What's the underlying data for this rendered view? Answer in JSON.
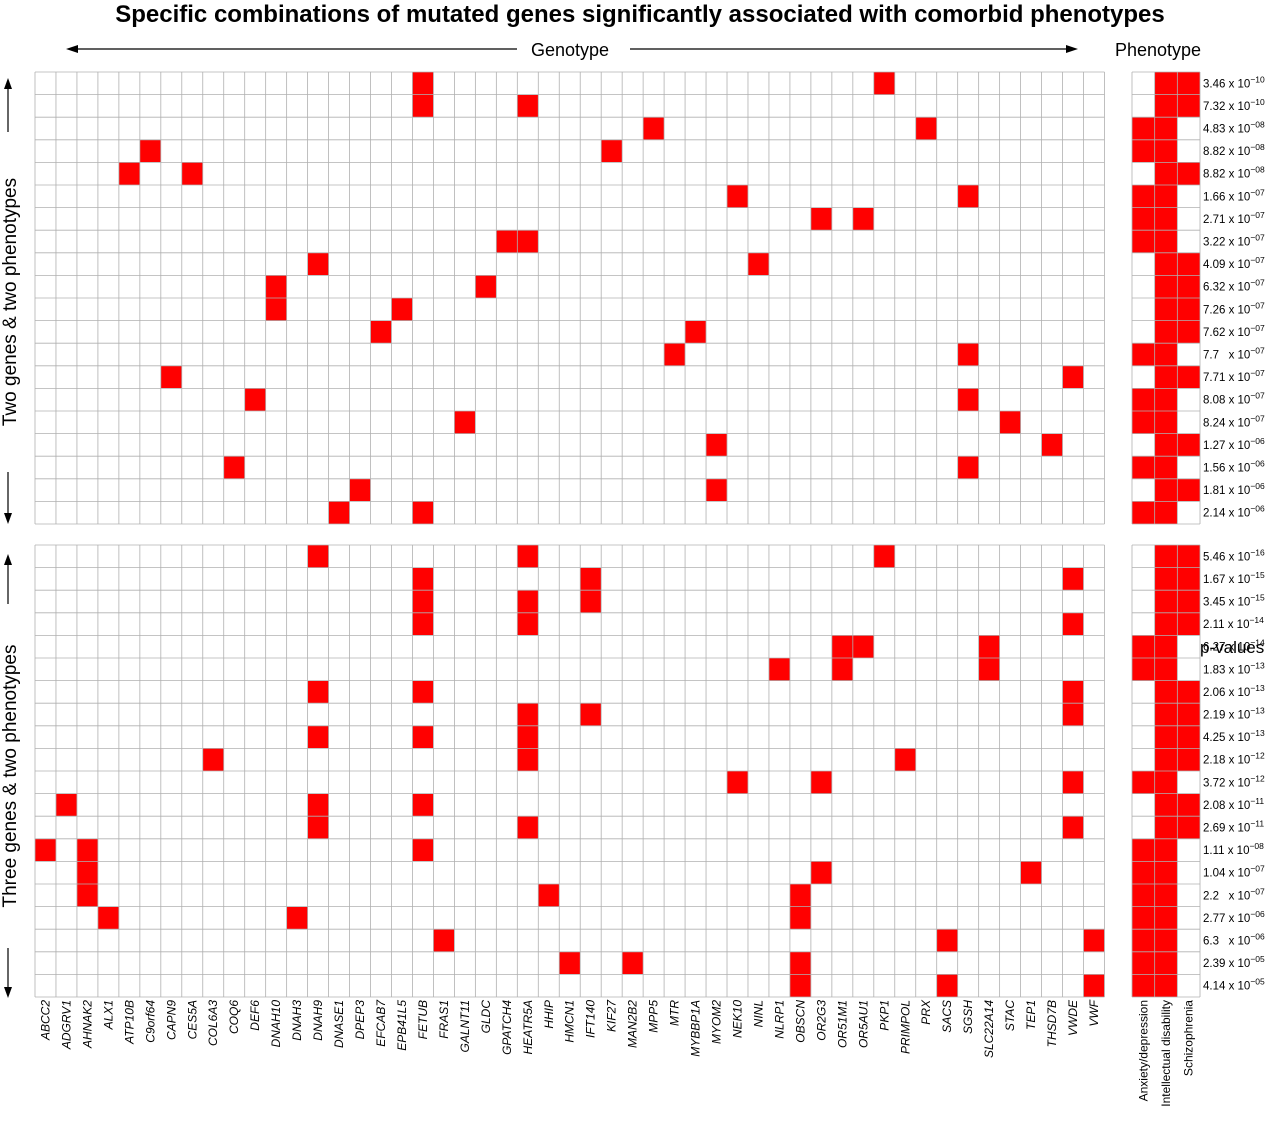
{
  "chart_data": {
    "type": "heatmap",
    "title": "Specific combinations of mutated genes significantly associated with comorbid phenotypes",
    "genotype_label": "Genotype",
    "phenotype_label": "Phenotype",
    "pvalues_label": "p-values",
    "genes": [
      "ABCC2",
      "ADGRV1",
      "AHNAK2",
      "ALX1",
      "ATP10B",
      "C9orf64",
      "CAPN9",
      "CES5A",
      "COL6A3",
      "COQ6",
      "DEF6",
      "DNAH10",
      "DNAH3",
      "DNAH9",
      "DNASE1",
      "DPEP3",
      "EFCAB7",
      "EPB41L5",
      "FETUB",
      "FRAS1",
      "GALNT11",
      "GLDC",
      "GPATCH4",
      "HEATR5A",
      "HHIP",
      "HMCN1",
      "IFT140",
      "KIF27",
      "MAN2B2",
      "MPP5",
      "MTR",
      "MYBBP1A",
      "MYOM2",
      "NEK10",
      "NINL",
      "NLRP1",
      "OBSCN",
      "OR2G3",
      "OR51M1",
      "OR5AU1",
      "PKP1",
      "PRIMPOL",
      "PRX",
      "SACS",
      "SGSH",
      "SLC22A14",
      "STAC",
      "TEP1",
      "THSD7B",
      "VWDE",
      "VWF"
    ],
    "phenotypes": [
      "Anxiety/depression",
      "Intellectual disability",
      "Schizophrenia"
    ],
    "panels": [
      {
        "label": "Two genes & two phenotypes",
        "rows": [
          {
            "genes": [
              "FETUB",
              "PKP1"
            ],
            "phenotypes": [
              "Intellectual disability",
              "Schizophrenia"
            ],
            "pvalue": "3.46 x 10",
            "exp": "−10"
          },
          {
            "genes": [
              "FETUB",
              "HEATR5A"
            ],
            "phenotypes": [
              "Intellectual disability",
              "Schizophrenia"
            ],
            "pvalue": "7.32 x 10",
            "exp": "−10"
          },
          {
            "genes": [
              "MPP5",
              "PRX"
            ],
            "phenotypes": [
              "Anxiety/depression",
              "Intellectual disability"
            ],
            "pvalue": "4.83 x 10",
            "exp": "−08"
          },
          {
            "genes": [
              "C9orf64",
              "KIF27"
            ],
            "phenotypes": [
              "Anxiety/depression",
              "Intellectual disability"
            ],
            "pvalue": "8.82 x 10",
            "exp": "−08"
          },
          {
            "genes": [
              "ATP10B",
              "CES5A"
            ],
            "phenotypes": [
              "Intellectual disability",
              "Schizophrenia"
            ],
            "pvalue": "8.82 x 10",
            "exp": "−08"
          },
          {
            "genes": [
              "NEK10",
              "SGSH"
            ],
            "phenotypes": [
              "Anxiety/depression",
              "Intellectual disability"
            ],
            "pvalue": "1.66 x 10",
            "exp": "−07"
          },
          {
            "genes": [
              "OR2G3",
              "OR5AU1"
            ],
            "phenotypes": [
              "Anxiety/depression",
              "Intellectual disability"
            ],
            "pvalue": "2.71 x 10",
            "exp": "−07"
          },
          {
            "genes": [
              "GPATCH4",
              "HEATR5A"
            ],
            "phenotypes": [
              "Anxiety/depression",
              "Intellectual disability"
            ],
            "pvalue": "3.22 x 10",
            "exp": "−07"
          },
          {
            "genes": [
              "DNAH9",
              "NINL"
            ],
            "phenotypes": [
              "Intellectual disability",
              "Schizophrenia"
            ],
            "pvalue": "4.09 x 10",
            "exp": "−07"
          },
          {
            "genes": [
              "DNAH10",
              "GLDC"
            ],
            "phenotypes": [
              "Intellectual disability",
              "Schizophrenia"
            ],
            "pvalue": "6.32 x 10",
            "exp": "−07"
          },
          {
            "genes": [
              "DNAH10",
              "EPB41L5"
            ],
            "phenotypes": [
              "Intellectual disability",
              "Schizophrenia"
            ],
            "pvalue": "7.26 x 10",
            "exp": "−07"
          },
          {
            "genes": [
              "EFCAB7",
              "MYBBP1A"
            ],
            "phenotypes": [
              "Intellectual disability",
              "Schizophrenia"
            ],
            "pvalue": "7.62 x 10",
            "exp": "−07"
          },
          {
            "genes": [
              "MTR",
              "SGSH"
            ],
            "phenotypes": [
              "Anxiety/depression",
              "Intellectual disability"
            ],
            "pvalue": "7.7   x 10",
            "exp": "−07"
          },
          {
            "genes": [
              "CAPN9",
              "VWDE"
            ],
            "phenotypes": [
              "Intellectual disability",
              "Schizophrenia"
            ],
            "pvalue": "7.71 x 10",
            "exp": "−07"
          },
          {
            "genes": [
              "DEF6",
              "SGSH"
            ],
            "phenotypes": [
              "Anxiety/depression",
              "Intellectual disability"
            ],
            "pvalue": "8.08 x 10",
            "exp": "−07"
          },
          {
            "genes": [
              "GALNT11",
              "STAC"
            ],
            "phenotypes": [
              "Anxiety/depression",
              "Intellectual disability"
            ],
            "pvalue": "8.24 x 10",
            "exp": "−07"
          },
          {
            "genes": [
              "MYOM2",
              "THSD7B"
            ],
            "phenotypes": [
              "Intellectual disability",
              "Schizophrenia"
            ],
            "pvalue": "1.27 x 10",
            "exp": "−06"
          },
          {
            "genes": [
              "COQ6",
              "SGSH"
            ],
            "phenotypes": [
              "Anxiety/depression",
              "Intellectual disability"
            ],
            "pvalue": "1.56 x 10",
            "exp": "−06"
          },
          {
            "genes": [
              "DPEP3",
              "MYOM2"
            ],
            "phenotypes": [
              "Intellectual disability",
              "Schizophrenia"
            ],
            "pvalue": "1.81 x 10",
            "exp": "−06"
          },
          {
            "genes": [
              "DNASE1",
              "FETUB"
            ],
            "phenotypes": [
              "Anxiety/depression",
              "Intellectual disability"
            ],
            "pvalue": "2.14 x 10",
            "exp": "−06"
          }
        ]
      },
      {
        "label": "Three genes & two phenotypes",
        "rows": [
          {
            "genes": [
              "DNAH9",
              "HEATR5A",
              "PKP1"
            ],
            "phenotypes": [
              "Intellectual disability",
              "Schizophrenia"
            ],
            "pvalue": "5.46 x 10",
            "exp": "−16"
          },
          {
            "genes": [
              "FETUB",
              "IFT140",
              "VWDE"
            ],
            "phenotypes": [
              "Intellectual disability",
              "Schizophrenia"
            ],
            "pvalue": "1.67 x 10",
            "exp": "−15"
          },
          {
            "genes": [
              "FETUB",
              "HEATR5A",
              "IFT140"
            ],
            "phenotypes": [
              "Intellectual disability",
              "Schizophrenia"
            ],
            "pvalue": "3.45 x 10",
            "exp": "−15"
          },
          {
            "genes": [
              "FETUB",
              "HEATR5A",
              "VWDE"
            ],
            "phenotypes": [
              "Intellectual disability",
              "Schizophrenia"
            ],
            "pvalue": "2.11 x 10",
            "exp": "−14"
          },
          {
            "genes": [
              "OR51M1",
              "OR5AU1",
              "SLC22A14"
            ],
            "phenotypes": [
              "Anxiety/depression",
              "Intellectual disability"
            ],
            "pvalue": "6.27 x 10",
            "exp": "−14"
          },
          {
            "genes": [
              "NLRP1",
              "OR51M1",
              "SLC22A14"
            ],
            "phenotypes": [
              "Anxiety/depression",
              "Intellectual disability"
            ],
            "pvalue": "1.83 x 10",
            "exp": "−13"
          },
          {
            "genes": [
              "DNAH9",
              "FETUB",
              "VWDE"
            ],
            "phenotypes": [
              "Intellectual disability",
              "Schizophrenia"
            ],
            "pvalue": "2.06 x 10",
            "exp": "−13"
          },
          {
            "genes": [
              "HEATR5A",
              "IFT140",
              "VWDE"
            ],
            "phenotypes": [
              "Intellectual disability",
              "Schizophrenia"
            ],
            "pvalue": "2.19 x 10",
            "exp": "−13"
          },
          {
            "genes": [
              "DNAH9",
              "FETUB",
              "HEATR5A"
            ],
            "phenotypes": [
              "Intellectual disability",
              "Schizophrenia"
            ],
            "pvalue": "4.25 x 10",
            "exp": "−13"
          },
          {
            "genes": [
              "COL6A3",
              "HEATR5A",
              "PRIMPOL"
            ],
            "phenotypes": [
              "Intellectual disability",
              "Schizophrenia"
            ],
            "pvalue": "2.18 x 10",
            "exp": "−12"
          },
          {
            "genes": [
              "NEK10",
              "OR2G3",
              "VWDE"
            ],
            "phenotypes": [
              "Anxiety/depression",
              "Intellectual disability"
            ],
            "pvalue": "3.72 x 10",
            "exp": "−12"
          },
          {
            "genes": [
              "ADGRV1",
              "DNAH9",
              "FETUB"
            ],
            "phenotypes": [
              "Intellectual disability",
              "Schizophrenia"
            ],
            "pvalue": "2.08 x 10",
            "exp": "−11"
          },
          {
            "genes": [
              "DNAH9",
              "HEATR5A",
              "VWDE"
            ],
            "phenotypes": [
              "Intellectual disability",
              "Schizophrenia"
            ],
            "pvalue": "2.69 x 10",
            "exp": "−11"
          },
          {
            "genes": [
              "ABCC2",
              "AHNAK2",
              "FETUB"
            ],
            "phenotypes": [
              "Anxiety/depression",
              "Intellectual disability"
            ],
            "pvalue": "1.11 x 10",
            "exp": "−08"
          },
          {
            "genes": [
              "AHNAK2",
              "OR2G3",
              "TEP1"
            ],
            "phenotypes": [
              "Anxiety/depression",
              "Intellectual disability"
            ],
            "pvalue": "1.04 x 10",
            "exp": "−07"
          },
          {
            "genes": [
              "AHNAK2",
              "HHIP",
              "OBSCN"
            ],
            "phenotypes": [
              "Anxiety/depression",
              "Intellectual disability"
            ],
            "pvalue": "2.2   x 10",
            "exp": "−07"
          },
          {
            "genes": [
              "ALX1",
              "DNAH3",
              "OBSCN"
            ],
            "phenotypes": [
              "Anxiety/depression",
              "Intellectual disability"
            ],
            "pvalue": "2.77 x 10",
            "exp": "−06"
          },
          {
            "genes": [
              "FRAS1",
              "SACS",
              "VWF"
            ],
            "phenotypes": [
              "Anxiety/depression",
              "Intellectual disability"
            ],
            "pvalue": "6.3   x 10",
            "exp": "−06"
          },
          {
            "genes": [
              "HMCN1",
              "MAN2B2",
              "OBSCN"
            ],
            "phenotypes": [
              "Anxiety/depression",
              "Intellectual disability"
            ],
            "pvalue": "2.39 x 10",
            "exp": "−05"
          },
          {
            "genes": [
              "OBSCN",
              "SACS",
              "VWF"
            ],
            "phenotypes": [
              "Anxiety/depression",
              "Intellectual disability"
            ],
            "pvalue": "4.14 x 10",
            "exp": "−05"
          }
        ]
      }
    ],
    "colors": {
      "filled": "#ff0000",
      "grid": "#b0b0b0",
      "background": "#ffffff"
    }
  }
}
